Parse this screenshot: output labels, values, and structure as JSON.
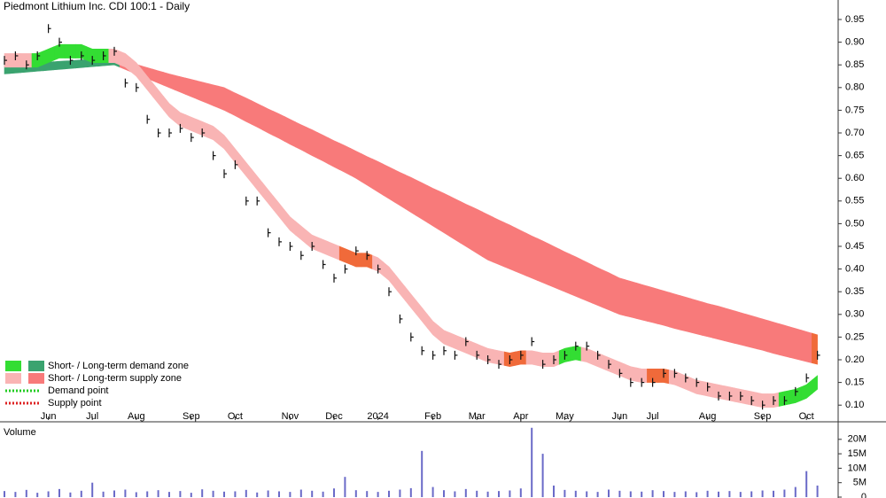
{
  "chart_data": {
    "type": "price-zones",
    "title": "Piedmont Lithium Inc. CDI 100:1 - Daily",
    "categories": [
      null,
      null,
      null,
      null,
      "Jun",
      null,
      null,
      null,
      "Jul",
      null,
      null,
      null,
      "Aug",
      null,
      null,
      null,
      null,
      "Sep",
      null,
      null,
      null,
      "Oct",
      null,
      null,
      null,
      null,
      "Nov",
      null,
      null,
      null,
      "Dec",
      null,
      null,
      null,
      "2024",
      null,
      null,
      null,
      null,
      "Feb",
      null,
      null,
      null,
      "Mar",
      null,
      null,
      null,
      "Apr",
      null,
      null,
      null,
      "May",
      null,
      null,
      null,
      null,
      "Jun",
      null,
      null,
      "Jul",
      null,
      null,
      null,
      null,
      "Aug",
      null,
      null,
      null,
      null,
      "Sep",
      null,
      null,
      null,
      "Oct",
      null
    ],
    "values": [
      0.86,
      0.87,
      0.85,
      0.87,
      0.93,
      0.9,
      0.86,
      0.87,
      0.86,
      0.87,
      0.88,
      0.81,
      0.8,
      0.73,
      0.7,
      0.7,
      0.71,
      0.69,
      0.7,
      0.65,
      0.61,
      0.63,
      0.55,
      0.55,
      0.48,
      0.46,
      0.45,
      0.43,
      0.45,
      0.41,
      0.38,
      0.4,
      0.44,
      0.43,
      0.4,
      0.35,
      0.29,
      0.25,
      0.22,
      0.21,
      0.22,
      0.21,
      0.24,
      0.21,
      0.2,
      0.19,
      0.2,
      0.21,
      0.24,
      0.19,
      0.2,
      0.21,
      0.23,
      0.23,
      0.21,
      0.19,
      0.17,
      0.15,
      0.15,
      0.15,
      0.17,
      0.17,
      0.16,
      0.15,
      0.14,
      0.12,
      0.12,
      0.12,
      0.11,
      0.1,
      0.11,
      0.11,
      0.13,
      0.16,
      0.21
    ],
    "color": "#111111",
    "zones": [
      {
        "upper": [
          0.85,
          0.852,
          0.853,
          0.855,
          0.856,
          0.858,
          0.859,
          0.861,
          0.862,
          0.864,
          0.865,
          0.858,
          0.851,
          0.844,
          0.837,
          0.83,
          0.824,
          0.818,
          0.812,
          0.806,
          0.8,
          0.788,
          0.777,
          0.765,
          0.753,
          0.742,
          0.73,
          0.718,
          0.707,
          0.695,
          0.683,
          0.672,
          0.66,
          0.648,
          0.637,
          0.625,
          0.613,
          0.602,
          0.59,
          0.578,
          0.567,
          0.555,
          0.543,
          0.532,
          0.52,
          0.508,
          0.497,
          0.485,
          0.473,
          0.462,
          0.45,
          0.438,
          0.427,
          0.415,
          0.403,
          0.392,
          0.38,
          0.373,
          0.366,
          0.359,
          0.352,
          0.345,
          0.338,
          0.331,
          0.324,
          0.318,
          0.311,
          0.304,
          0.297,
          0.29,
          0.283,
          0.276,
          0.269,
          0.262,
          0.255
        ],
        "lower": [
          0.83,
          0.832,
          0.834,
          0.836,
          0.838,
          0.84,
          0.842,
          0.844,
          0.846,
          0.848,
          0.85,
          0.84,
          0.83,
          0.82,
          0.81,
          0.8,
          0.79,
          0.78,
          0.77,
          0.76,
          0.75,
          0.738,
          0.725,
          0.713,
          0.7,
          0.688,
          0.675,
          0.663,
          0.65,
          0.638,
          0.625,
          0.613,
          0.6,
          0.585,
          0.57,
          0.555,
          0.54,
          0.525,
          0.51,
          0.495,
          0.48,
          0.465,
          0.45,
          0.435,
          0.42,
          0.41,
          0.4,
          0.39,
          0.38,
          0.37,
          0.36,
          0.35,
          0.34,
          0.33,
          0.32,
          0.31,
          0.3,
          0.294,
          0.288,
          0.282,
          0.276,
          0.269,
          0.263,
          0.257,
          0.251,
          0.245,
          0.239,
          0.233,
          0.227,
          0.221,
          0.214,
          0.208,
          0.202,
          0.196,
          0.19
        ],
        "colors": [
          "#3aa36f",
          "#3aa36f",
          "#3aa36f",
          "#3aa36f",
          "#3aa36f",
          "#3aa36f",
          "#3aa36f",
          "#3aa36f",
          "#3aa36f",
          "#3aa36f",
          "#3aa36f",
          "#f87a7a",
          "#f87a7a",
          "#f87a7a",
          "#f87a7a",
          "#f87a7a",
          "#f87a7a",
          "#f87a7a",
          "#f87a7a",
          "#f87a7a",
          "#f87a7a",
          "#f87a7a",
          "#f87a7a",
          "#f87a7a",
          "#f87a7a",
          "#f87a7a",
          "#f87a7a",
          "#f87a7a",
          "#f87a7a",
          "#f87a7a",
          "#f87a7a",
          "#f87a7a",
          "#f87a7a",
          "#f87a7a",
          "#f87a7a",
          "#f87a7a",
          "#f87a7a",
          "#f87a7a",
          "#f87a7a",
          "#f87a7a",
          "#f87a7a",
          "#f87a7a",
          "#f87a7a",
          "#f87a7a",
          "#f87a7a",
          "#f87a7a",
          "#f87a7a",
          "#f87a7a",
          "#f87a7a",
          "#f87a7a",
          "#f87a7a",
          "#f87a7a",
          "#f87a7a",
          "#f87a7a",
          "#f87a7a",
          "#f87a7a",
          "#f87a7a",
          "#f87a7a",
          "#f87a7a",
          "#f87a7a",
          "#f87a7a",
          "#f87a7a",
          "#f87a7a",
          "#f87a7a",
          "#f87a7a",
          "#f87a7a",
          "#f87a7a",
          "#f87a7a",
          "#f87a7a",
          "#f87a7a",
          "#f87a7a",
          "#f87a7a",
          "#f87a7a",
          "#f87a7a",
          "#f06a3a"
        ]
      },
      {
        "upper": [
          0.875,
          0.875,
          0.875,
          0.875,
          0.885,
          0.895,
          0.895,
          0.895,
          0.885,
          0.885,
          0.885,
          0.875,
          0.855,
          0.825,
          0.795,
          0.765,
          0.745,
          0.735,
          0.725,
          0.715,
          0.695,
          0.665,
          0.635,
          0.605,
          0.575,
          0.545,
          0.515,
          0.495,
          0.475,
          0.465,
          0.455,
          0.445,
          0.435,
          0.435,
          0.425,
          0.405,
          0.375,
          0.345,
          0.315,
          0.285,
          0.265,
          0.255,
          0.245,
          0.235,
          0.225,
          0.22,
          0.215,
          0.22,
          0.22,
          0.215,
          0.215,
          0.225,
          0.23,
          0.225,
          0.215,
          0.205,
          0.195,
          0.185,
          0.18,
          0.18,
          0.18,
          0.175,
          0.165,
          0.155,
          0.15,
          0.145,
          0.14,
          0.135,
          0.13,
          0.125,
          0.125,
          0.13,
          0.135,
          0.145,
          0.165
        ],
        "lower": [
          0.845,
          0.845,
          0.845,
          0.845,
          0.855,
          0.865,
          0.865,
          0.865,
          0.855,
          0.855,
          0.855,
          0.845,
          0.825,
          0.795,
          0.765,
          0.735,
          0.715,
          0.705,
          0.695,
          0.685,
          0.665,
          0.635,
          0.605,
          0.575,
          0.545,
          0.515,
          0.485,
          0.465,
          0.445,
          0.435,
          0.425,
          0.415,
          0.405,
          0.405,
          0.395,
          0.375,
          0.345,
          0.315,
          0.285,
          0.255,
          0.235,
          0.225,
          0.215,
          0.205,
          0.195,
          0.19,
          0.185,
          0.19,
          0.19,
          0.185,
          0.185,
          0.195,
          0.2,
          0.195,
          0.185,
          0.175,
          0.165,
          0.155,
          0.15,
          0.15,
          0.15,
          0.145,
          0.135,
          0.125,
          0.12,
          0.115,
          0.11,
          0.105,
          0.1,
          0.095,
          0.095,
          0.1,
          0.105,
          0.115,
          0.135
        ],
        "colors": [
          "#f9b4b4",
          "#f9b4b4",
          "#f9b4b4",
          "#33dd33",
          "#33dd33",
          "#33dd33",
          "#33dd33",
          "#33dd33",
          "#33dd33",
          "#33dd33",
          "#f9b4b4",
          "#f9b4b4",
          "#f9b4b4",
          "#f9b4b4",
          "#f9b4b4",
          "#f9b4b4",
          "#f9b4b4",
          "#f9b4b4",
          "#f9b4b4",
          "#f9b4b4",
          "#f9b4b4",
          "#f9b4b4",
          "#f9b4b4",
          "#f9b4b4",
          "#f9b4b4",
          "#f9b4b4",
          "#f9b4b4",
          "#f9b4b4",
          "#f9b4b4",
          "#f9b4b4",
          "#f9b4b4",
          "#f06a3a",
          "#f06a3a",
          "#f06a3a",
          "#f9b4b4",
          "#f9b4b4",
          "#f9b4b4",
          "#f9b4b4",
          "#f9b4b4",
          "#f9b4b4",
          "#f9b4b4",
          "#f9b4b4",
          "#f9b4b4",
          "#f9b4b4",
          "#f9b4b4",
          "#f9b4b4",
          "#f06a3a",
          "#f06a3a",
          "#f9b4b4",
          "#f9b4b4",
          "#f9b4b4",
          "#33dd33",
          "#33dd33",
          "#f9b4b4",
          "#f9b4b4",
          "#f9b4b4",
          "#f9b4b4",
          "#f9b4b4",
          "#f9b4b4",
          "#f06a3a",
          "#f06a3a",
          "#f9b4b4",
          "#f9b4b4",
          "#f9b4b4",
          "#f9b4b4",
          "#f9b4b4",
          "#f9b4b4",
          "#f9b4b4",
          "#f9b4b4",
          "#f9b4b4",
          "#f9b4b4",
          "#33dd33",
          "#33dd33",
          "#33dd33",
          "#33dd33"
        ]
      }
    ],
    "ylim": [
      0.075,
      0.993
    ],
    "yticks": [
      {
        "value": 0.95,
        "label": "0.95"
      },
      {
        "value": 0.9,
        "label": "0.90"
      },
      {
        "value": 0.85,
        "label": "0.85"
      },
      {
        "value": 0.8,
        "label": "0.80"
      },
      {
        "value": 0.75,
        "label": "0.75"
      },
      {
        "value": 0.7,
        "label": "0.70"
      },
      {
        "value": 0.65,
        "label": "0.65"
      },
      {
        "value": 0.6,
        "label": "0.60"
      },
      {
        "value": 0.55,
        "label": "0.55"
      },
      {
        "value": 0.5,
        "label": "0.50"
      },
      {
        "value": 0.45,
        "label": "0.45"
      },
      {
        "value": 0.4,
        "label": "0.40"
      },
      {
        "value": 0.35,
        "label": "0.35"
      },
      {
        "value": 0.3,
        "label": "0.30"
      },
      {
        "value": 0.25,
        "label": "0.25"
      },
      {
        "value": 0.2,
        "label": "0.20"
      },
      {
        "value": 0.15,
        "label": "0.15"
      },
      {
        "value": 0.1,
        "label": "0.10"
      }
    ],
    "legend": [
      {
        "label": "Short- / Long-term demand zone",
        "colors": [
          "#33dd33",
          "#3aa36f"
        ]
      },
      {
        "label": "Short- / Long-term supply zone",
        "colors": [
          "#f9b4b4",
          "#f87a7a"
        ]
      },
      {
        "label": "Demand point",
        "colors": [
          "#22cc22"
        ]
      },
      {
        "label": "Supply point",
        "colors": [
          "#dd2222"
        ]
      }
    ],
    "volume": {
      "title": "Volume",
      "values": [
        2100000,
        1800000,
        2500000,
        1500000,
        2000000,
        2800000,
        1600000,
        2200000,
        5000000,
        1900000,
        2300000,
        2600000,
        1700000,
        2000000,
        2400000,
        1800000,
        2100000,
        1500000,
        2700000,
        2200000,
        1900000,
        2000000,
        2500000,
        1600000,
        2300000,
        2000000,
        1800000,
        2600000,
        2200000,
        1900000,
        3000000,
        7000000,
        2400000,
        2100000,
        1800000,
        2200000,
        2600000,
        3100000,
        16000000,
        3500000,
        2400000,
        2000000,
        2800000,
        2200000,
        1900000,
        2100000,
        2300000,
        3000000,
        24000000,
        15000000,
        4000000,
        2500000,
        2200000,
        2000000,
        1800000,
        2600000,
        2200000,
        2000000,
        1900000,
        2400000,
        2100000,
        1800000,
        2000000,
        1700000,
        2200000,
        1900000,
        2100000,
        1800000,
        2000000,
        2300000,
        2200000,
        2600000,
        3500000,
        9000000,
        4000000
      ],
      "color": "#6a6ac8",
      "ylim": [
        0,
        25000000
      ],
      "yticks": [
        0,
        {
          "value": 5000000,
          "label": "5M"
        },
        {
          "value": 10000000,
          "label": "10M"
        },
        {
          "value": 15000000,
          "label": "15M"
        },
        {
          "value": 20000000,
          "label": "20M"
        }
      ]
    }
  }
}
